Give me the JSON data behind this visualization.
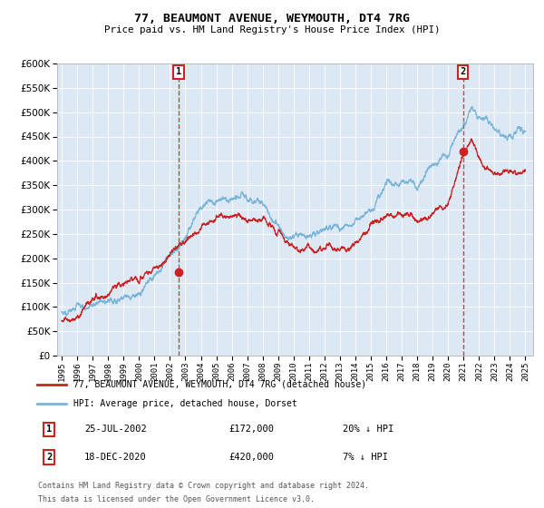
{
  "title": "77, BEAUMONT AVENUE, WEYMOUTH, DT4 7RG",
  "subtitle": "Price paid vs. HM Land Registry's House Price Index (HPI)",
  "legend_line1": "77, BEAUMONT AVENUE, WEYMOUTH, DT4 7RG (detached house)",
  "legend_line2": "HPI: Average price, detached house, Dorset",
  "annotation1_date": "25-JUL-2002",
  "annotation1_price": "£172,000",
  "annotation1_hpi": "20% ↓ HPI",
  "annotation2_date": "18-DEC-2020",
  "annotation2_price": "£420,000",
  "annotation2_hpi": "7% ↓ HPI",
  "footnote1": "Contains HM Land Registry data © Crown copyright and database right 2024.",
  "footnote2": "This data is licensed under the Open Government Licence v3.0.",
  "hpi_color": "#7ab4d8",
  "price_color": "#cc2222",
  "dot_color": "#cc2222",
  "vline_color": "#cc2222",
  "plot_bg": "#dce9f5",
  "ann_box_color": "#cc2222",
  "ylim": [
    0,
    600000
  ],
  "yticks": [
    0,
    50000,
    100000,
    150000,
    200000,
    250000,
    300000,
    350000,
    400000,
    450000,
    500000,
    550000,
    600000
  ],
  "year_start": 1995,
  "year_end": 2025,
  "sale1_t": 2002.56,
  "sale1_price": 172000,
  "sale2_t": 2020.96,
  "sale2_price": 420000
}
